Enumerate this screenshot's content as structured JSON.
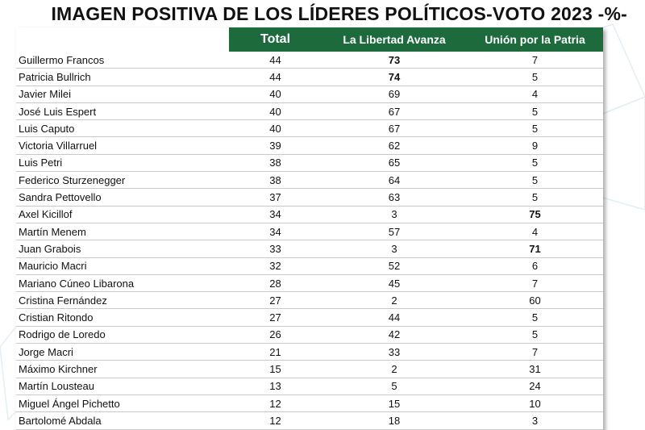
{
  "title": "IMAGEN POSITIVA DE LOS LÍDERES POLÍTICOS-VOTO 2023 -%-",
  "chart_data": {
    "type": "table",
    "columns": [
      "Total",
      "La Libertad Avanza",
      "Unión por la Patria"
    ],
    "rows": [
      {
        "name": "Guillermo Francos",
        "values": [
          44,
          73,
          7
        ],
        "bold": [
          false,
          true,
          false
        ]
      },
      {
        "name": "Patricia Bullrich",
        "values": [
          44,
          74,
          5
        ],
        "bold": [
          false,
          true,
          false
        ]
      },
      {
        "name": "Javier Milei",
        "values": [
          40,
          69,
          4
        ],
        "bold": [
          false,
          false,
          false
        ]
      },
      {
        "name": "José Luis Espert",
        "values": [
          40,
          67,
          5
        ],
        "bold": [
          false,
          false,
          false
        ]
      },
      {
        "name": "Luis Caputo",
        "values": [
          40,
          67,
          5
        ],
        "bold": [
          false,
          false,
          false
        ]
      },
      {
        "name": "Victoria Villarruel",
        "values": [
          39,
          62,
          9
        ],
        "bold": [
          false,
          false,
          false
        ]
      },
      {
        "name": "Luis Petri",
        "values": [
          38,
          65,
          5
        ],
        "bold": [
          false,
          false,
          false
        ]
      },
      {
        "name": "Federico Sturzenegger",
        "values": [
          38,
          64,
          5
        ],
        "bold": [
          false,
          false,
          false
        ]
      },
      {
        "name": "Sandra Pettovello",
        "values": [
          37,
          63,
          5
        ],
        "bold": [
          false,
          false,
          false
        ]
      },
      {
        "name": "Axel Kicillof",
        "values": [
          34,
          3,
          75
        ],
        "bold": [
          false,
          false,
          true
        ]
      },
      {
        "name": "Martín Menem",
        "values": [
          34,
          57,
          4
        ],
        "bold": [
          false,
          false,
          false
        ]
      },
      {
        "name": "Juan Grabois",
        "values": [
          33,
          3,
          71
        ],
        "bold": [
          false,
          false,
          true
        ]
      },
      {
        "name": "Mauricio Macri",
        "values": [
          32,
          52,
          6
        ],
        "bold": [
          false,
          false,
          false
        ]
      },
      {
        "name": "Mariano Cúneo Libarona",
        "values": [
          28,
          45,
          7
        ],
        "bold": [
          false,
          false,
          false
        ]
      },
      {
        "name": "Cristina Fernández",
        "values": [
          27,
          2,
          60
        ],
        "bold": [
          false,
          false,
          false
        ]
      },
      {
        "name": "Cristian Ritondo",
        "values": [
          27,
          44,
          5
        ],
        "bold": [
          false,
          false,
          false
        ]
      },
      {
        "name": "Rodrigo de Loredo",
        "values": [
          26,
          42,
          5
        ],
        "bold": [
          false,
          false,
          false
        ]
      },
      {
        "name": "Jorge Macri",
        "values": [
          21,
          33,
          7
        ],
        "bold": [
          false,
          false,
          false
        ]
      },
      {
        "name": "Máximo Kirchner",
        "values": [
          15,
          2,
          31
        ],
        "bold": [
          false,
          false,
          false
        ]
      },
      {
        "name": "Martín Lousteau",
        "values": [
          13,
          5,
          24
        ],
        "bold": [
          false,
          false,
          false
        ]
      },
      {
        "name": "Miguel Ángel Pichetto",
        "values": [
          12,
          15,
          10
        ],
        "bold": [
          false,
          false,
          false
        ]
      },
      {
        "name": "Bartolomé Abdala",
        "values": [
          12,
          18,
          3
        ],
        "bold": [
          false,
          false,
          false
        ]
      }
    ]
  },
  "colors": {
    "header_green": "#1d6b3c",
    "header_text": "#ffffff",
    "row_rule": "#c9c9c9"
  }
}
